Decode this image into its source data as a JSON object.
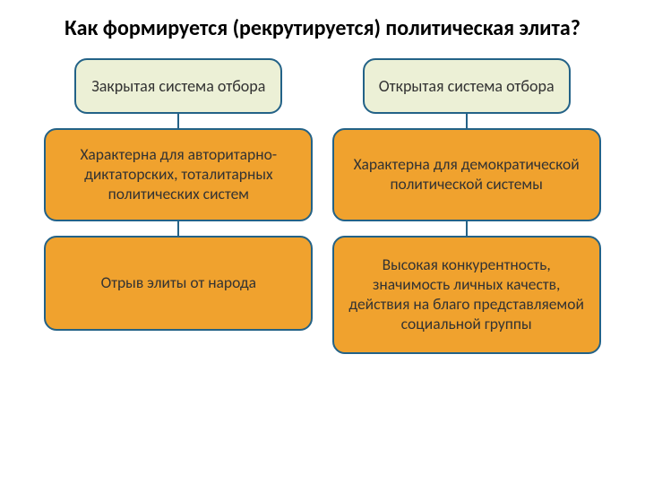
{
  "title": "Как формируется (рекрутируется) политическая элита?",
  "title_fontsize": 24,
  "background": "#ffffff",
  "colors": {
    "head_fill": "#ecf0d6",
    "head_border": "#236287",
    "mid_fill": "#f0a22e",
    "mid_border": "#236287",
    "connector": "#236287",
    "text_head": "#333333",
    "text_body": "#333333"
  },
  "left": {
    "head": "Закрытая система отбора",
    "mid": "Характерна для авторитарно-диктаторских, тоталитарных политических систем",
    "last": "Отрыв элиты от народа",
    "last_height": 106
  },
  "right": {
    "head": "Открытая  система отбора",
    "mid": "Характерна для демократической политической системы",
    "last": "Высокая конкурентность, значимость личных качеств, действия на благо представляемой социальной группы",
    "last_height": 132
  },
  "font": {
    "head_size": 18,
    "body_size": 17.5
  },
  "borders": {
    "head_width": 2,
    "body_width": 2
  },
  "connector_height": 16
}
